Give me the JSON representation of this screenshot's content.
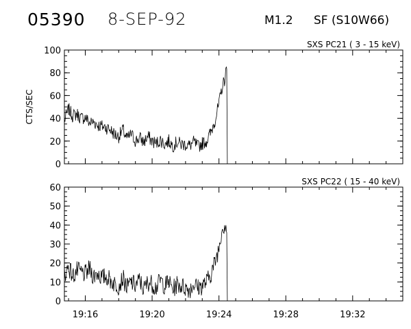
{
  "header": {
    "event_id": "05390",
    "date": "8-SEP-92",
    "goes_class": "M1.2",
    "flare": "SF (S10W66)"
  },
  "chart_data": [
    {
      "type": "line",
      "title": "SXS PC21  (  3 - 15 keV)",
      "ylabel": "CTS/SEC",
      "xlabel": "",
      "ylim": [
        0,
        100
      ],
      "yticks": [
        0,
        20,
        40,
        60,
        80,
        100
      ],
      "xlim": [
        "19:14:45",
        "19:35:00"
      ],
      "xticks": [
        "19:16",
        "19:20",
        "19:24",
        "19:28",
        "19:32"
      ],
      "grid": false,
      "series": [
        {
          "x": [
            "19:14:45",
            "19:15:00",
            "19:15:15",
            "19:15:30",
            "19:15:45",
            "19:16:00",
            "19:16:15",
            "19:16:30",
            "19:16:45",
            "19:17:00",
            "19:17:15",
            "19:17:30",
            "19:17:45",
            "19:18:00",
            "19:18:15",
            "19:18:30",
            "19:18:45",
            "19:19:00",
            "19:19:15",
            "19:19:30",
            "19:19:45",
            "19:20:00",
            "19:20:15",
            "19:20:30",
            "19:20:45",
            "19:21:00",
            "19:21:15",
            "19:21:30",
            "19:21:45",
            "19:22:00",
            "19:22:15",
            "19:22:30",
            "19:22:45",
            "19:23:00",
            "19:23:15",
            "19:23:30",
            "19:23:45",
            "19:24:00",
            "19:24:10",
            "19:24:20",
            "19:24:25",
            "19:24:28",
            "19:24:30"
          ],
          "values": [
            38,
            48,
            42,
            44,
            40,
            41,
            36,
            37,
            34,
            33,
            32,
            30,
            26,
            24,
            30,
            22,
            26,
            20,
            23,
            19,
            24,
            20,
            18,
            21,
            17,
            20,
            16,
            19,
            17,
            17,
            16,
            19,
            15,
            18,
            20,
            27,
            38,
            52,
            66,
            74,
            81,
            83,
            0
          ]
        }
      ]
    },
    {
      "type": "line",
      "title": "SXS PC22  ( 15 - 40 keV)",
      "ylabel": "",
      "xlabel": "",
      "ylim": [
        0,
        60
      ],
      "yticks": [
        0,
        10,
        20,
        30,
        40,
        50,
        60
      ],
      "xlim": [
        "19:14:45",
        "19:35:00"
      ],
      "xticks": [
        "19:16",
        "19:20",
        "19:24",
        "19:28",
        "19:32"
      ],
      "grid": false,
      "series": [
        {
          "x": [
            "19:14:45",
            "19:15:00",
            "19:15:15",
            "19:15:30",
            "19:15:45",
            "19:16:00",
            "19:16:15",
            "19:16:30",
            "19:16:45",
            "19:17:00",
            "19:17:15",
            "19:17:30",
            "19:17:45",
            "19:18:00",
            "19:18:15",
            "19:18:30",
            "19:18:45",
            "19:19:00",
            "19:19:15",
            "19:19:30",
            "19:19:45",
            "19:20:00",
            "19:20:15",
            "19:20:30",
            "19:20:45",
            "19:21:00",
            "19:21:15",
            "19:21:30",
            "19:21:45",
            "19:22:00",
            "19:22:15",
            "19:22:30",
            "19:22:45",
            "19:23:00",
            "19:23:15",
            "19:23:30",
            "19:23:45",
            "19:24:00",
            "19:24:10",
            "19:24:20",
            "19:24:25",
            "19:24:28",
            "19:24:30"
          ],
          "values": [
            14,
            18,
            13,
            16,
            15,
            14,
            17,
            13,
            15,
            12,
            13,
            11,
            9,
            8,
            12,
            7,
            10,
            8,
            11,
            6,
            10,
            9,
            7,
            11,
            8,
            10,
            6,
            9,
            8,
            7,
            6,
            9,
            7,
            8,
            10,
            14,
            20,
            28,
            38,
            40,
            41,
            36,
            0
          ]
        }
      ]
    }
  ]
}
